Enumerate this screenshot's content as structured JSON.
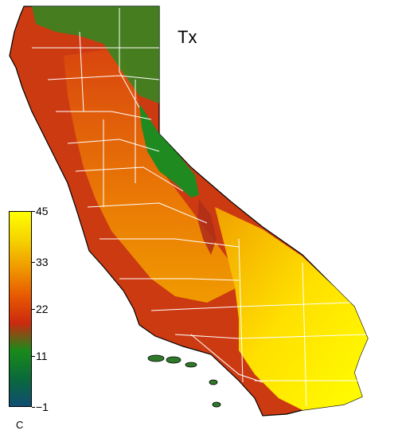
{
  "title": "Tx",
  "colorbar": {
    "unit": "C",
    "min": -1,
    "max": 45,
    "ticks": [
      {
        "value": 45,
        "label": "45"
      },
      {
        "value": 33,
        "label": "33"
      },
      {
        "value": 22,
        "label": "22"
      },
      {
        "value": 11,
        "label": "11"
      },
      {
        "value": -1,
        "label": "−1"
      }
    ],
    "gradient": [
      "#ffff00",
      "#f5d400",
      "#f09a00",
      "#e85a00",
      "#cc2a10",
      "#1a8a1a",
      "#0a6a3a",
      "#0f4d73"
    ]
  },
  "colors": {
    "state_outline": "#000000",
    "county_borders": "#ffffff",
    "hot": "#fff200",
    "warm": "#f08a00",
    "mild": "#d2281a",
    "cool": "#1f8a1f"
  }
}
